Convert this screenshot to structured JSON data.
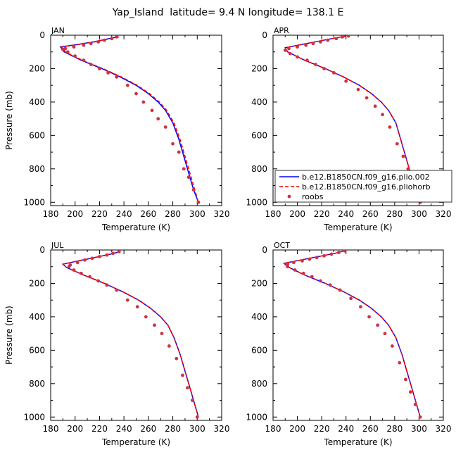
{
  "figure": {
    "title": "Yap_Island  latitude= 9.4 N longitude= 138.1 E"
  },
  "chart_data": [
    {
      "type": "line",
      "panel": "JAN",
      "xlabel": "Temperature (K)",
      "ylabel": "Pressure (mb)",
      "xlim": [
        180,
        320
      ],
      "ylim": [
        0,
        1020
      ],
      "y_inverted": true,
      "xticks": [
        180,
        200,
        220,
        240,
        260,
        280,
        300,
        320
      ],
      "yticks": [
        0,
        200,
        400,
        600,
        800,
        1000
      ],
      "series": [
        {
          "name": "b.e12.B1850CN.f09_g16.plio.002",
          "color": "#0000ff",
          "style": "solid",
          "x": [
            235,
            228,
            215,
            200,
            188,
            191,
            205,
            222,
            237,
            250,
            260,
            268,
            274,
            280,
            285,
            289,
            293,
            297,
            301
          ],
          "y": [
            10,
            20,
            40,
            58,
            70,
            100,
            150,
            200,
            250,
            300,
            350,
            400,
            450,
            525,
            625,
            725,
            825,
            925,
            1000
          ]
        },
        {
          "name": "b.e12.B1850CN.f09_g16.pliohorb",
          "color": "#ff0000",
          "style": "dashed",
          "x": [
            236,
            229,
            216,
            201,
            189,
            192,
            206,
            223,
            238,
            251,
            261,
            269,
            275,
            281,
            286,
            290,
            294,
            298,
            301
          ],
          "y": [
            10,
            20,
            40,
            58,
            70,
            100,
            150,
            200,
            250,
            300,
            350,
            400,
            450,
            525,
            625,
            725,
            825,
            925,
            1000
          ]
        },
        {
          "name": "roobs",
          "color": "#cc3344",
          "style": "points",
          "x": [
            234,
            230,
            224,
            219,
            213,
            207,
            199,
            192,
            190,
            194,
            200,
            207,
            213,
            220,
            227,
            234,
            243,
            250,
            256,
            263,
            268,
            274,
            280,
            285,
            289,
            293,
            297,
            301
          ],
          "y": [
            10,
            20,
            30,
            40,
            50,
            60,
            70,
            80,
            85,
            100,
            125,
            150,
            175,
            200,
            225,
            250,
            300,
            350,
            400,
            450,
            500,
            550,
            650,
            700,
            800,
            850,
            925,
            1000
          ]
        }
      ]
    },
    {
      "type": "line",
      "panel": "APR",
      "xlabel": "Temperature (K)",
      "ylabel": "",
      "xlim": [
        180,
        320
      ],
      "ylim": [
        0,
        1020
      ],
      "y_inverted": true,
      "xticks": [
        180,
        200,
        220,
        240,
        260,
        280,
        300,
        320
      ],
      "yticks": [
        0,
        200,
        400,
        600,
        800,
        1000
      ],
      "legend": {
        "placement": "bottom-right",
        "entries": [
          "b.e12.B1850CN.f09_g16.plio.002",
          "b.e12.B1850CN.f09_g16.pliohorb",
          "roobs"
        ]
      },
      "series": [
        {
          "name": "b.e12.B1850CN.f09_g16.plio.002",
          "color": "#0000ff",
          "style": "solid",
          "x": [
            240,
            232,
            218,
            204,
            190,
            192,
            206,
            223,
            238,
            251,
            261,
            269,
            275,
            281,
            285,
            289,
            293,
            297,
            301
          ],
          "y": [
            5,
            15,
            35,
            55,
            75,
            100,
            150,
            200,
            250,
            300,
            350,
            400,
            450,
            525,
            625,
            725,
            825,
            925,
            1000
          ]
        },
        {
          "name": "b.e12.B1850CN.f09_g16.pliohorb",
          "color": "#ff0000",
          "style": "dashed",
          "x": [
            240,
            232,
            218,
            204,
            190,
            192,
            206,
            223,
            238,
            251,
            261,
            269,
            275,
            281,
            285,
            289,
            293,
            297,
            301
          ],
          "y": [
            5,
            15,
            35,
            55,
            75,
            100,
            150,
            200,
            250,
            300,
            350,
            400,
            450,
            525,
            625,
            725,
            825,
            925,
            1000
          ]
        },
        {
          "name": "roobs",
          "color": "#cc3344",
          "style": "points",
          "x": [
            242,
            237,
            232,
            225,
            219,
            213,
            207,
            200,
            193,
            190,
            194,
            200,
            208,
            215,
            222,
            230,
            240,
            250,
            257,
            264,
            270,
            276,
            282,
            287,
            291,
            295,
            299,
            301
          ],
          "y": [
            5,
            10,
            20,
            30,
            40,
            50,
            60,
            70,
            80,
            90,
            110,
            130,
            150,
            175,
            200,
            225,
            275,
            325,
            375,
            425,
            475,
            550,
            650,
            725,
            800,
            875,
            950,
            1000
          ]
        }
      ]
    },
    {
      "type": "line",
      "panel": "JUL",
      "xlabel": "Temperature (K)",
      "ylabel": "Pressure (mb)",
      "xlim": [
        180,
        320
      ],
      "ylim": [
        0,
        1020
      ],
      "y_inverted": true,
      "xticks": [
        180,
        200,
        220,
        240,
        260,
        280,
        300,
        320
      ],
      "yticks": [
        0,
        200,
        400,
        600,
        800,
        1000
      ],
      "series": [
        {
          "name": "b.e12.B1850CN.f09_g16.plio.002",
          "color": "#0000ff",
          "style": "solid",
          "x": [
            237,
            229,
            216,
            203,
            190,
            193,
            207,
            224,
            239,
            252,
            262,
            270,
            276,
            281,
            286,
            290,
            294,
            298,
            301
          ],
          "y": [
            10,
            25,
            45,
            65,
            85,
            105,
            150,
            200,
            250,
            300,
            350,
            400,
            450,
            525,
            625,
            725,
            825,
            925,
            1000
          ]
        },
        {
          "name": "b.e12.B1850CN.f09_g16.pliohorb",
          "color": "#ff0000",
          "style": "dashed",
          "x": [
            237,
            229,
            216,
            203,
            190,
            193,
            207,
            224,
            239,
            252,
            262,
            270,
            276,
            281,
            286,
            290,
            294,
            298,
            301
          ],
          "y": [
            10,
            25,
            45,
            65,
            85,
            105,
            150,
            200,
            250,
            300,
            350,
            400,
            450,
            525,
            625,
            725,
            825,
            925,
            1000
          ]
        },
        {
          "name": "roobs",
          "color": "#cc3344",
          "style": "points",
          "x": [
            236,
            231,
            226,
            220,
            214,
            208,
            202,
            196,
            195,
            199,
            205,
            212,
            219,
            226,
            234,
            243,
            251,
            258,
            265,
            271,
            277,
            283,
            288,
            292,
            296,
            300
          ],
          "y": [
            10,
            20,
            30,
            40,
            50,
            60,
            75,
            90,
            100,
            120,
            140,
            160,
            185,
            210,
            240,
            300,
            340,
            400,
            450,
            500,
            575,
            650,
            750,
            825,
            900,
            1000
          ]
        }
      ]
    },
    {
      "type": "line",
      "panel": "OCT",
      "xlabel": "Temperature (K)",
      "ylabel": "",
      "xlim": [
        180,
        320
      ],
      "ylim": [
        0,
        1020
      ],
      "y_inverted": true,
      "xticks": [
        180,
        200,
        220,
        240,
        260,
        280,
        300,
        320
      ],
      "yticks": [
        0,
        200,
        400,
        600,
        800,
        1000
      ],
      "series": [
        {
          "name": "b.e12.B1850CN.f09_g16.plio.002",
          "color": "#0000ff",
          "style": "solid",
          "x": [
            239,
            231,
            217,
            203,
            189,
            192,
            206,
            223,
            238,
            251,
            261,
            269,
            275,
            281,
            286,
            290,
            294,
            298,
            301
          ],
          "y": [
            5,
            20,
            40,
            60,
            80,
            100,
            150,
            200,
            250,
            300,
            350,
            400,
            450,
            525,
            625,
            725,
            825,
            925,
            1000
          ]
        },
        {
          "name": "b.e12.B1850CN.f09_g16.pliohorb",
          "color": "#ff0000",
          "style": "dashed",
          "x": [
            239,
            231,
            217,
            203,
            189,
            192,
            206,
            223,
            238,
            251,
            261,
            269,
            275,
            281,
            286,
            290,
            294,
            298,
            301
          ],
          "y": [
            5,
            20,
            40,
            60,
            80,
            100,
            150,
            200,
            250,
            300,
            350,
            400,
            450,
            525,
            625,
            725,
            825,
            925,
            1000
          ]
        },
        {
          "name": "roobs",
          "color": "#cc3344",
          "style": "points",
          "x": [
            239,
            234,
            228,
            222,
            216,
            210,
            204,
            197,
            192,
            192,
            198,
            205,
            212,
            219,
            227,
            235,
            244,
            252,
            259,
            266,
            272,
            278,
            284,
            289,
            293,
            297,
            301
          ],
          "y": [
            5,
            15,
            25,
            35,
            45,
            55,
            65,
            75,
            85,
            100,
            120,
            140,
            160,
            185,
            210,
            240,
            290,
            340,
            400,
            450,
            500,
            575,
            675,
            775,
            850,
            925,
            1000
          ]
        }
      ]
    }
  ]
}
